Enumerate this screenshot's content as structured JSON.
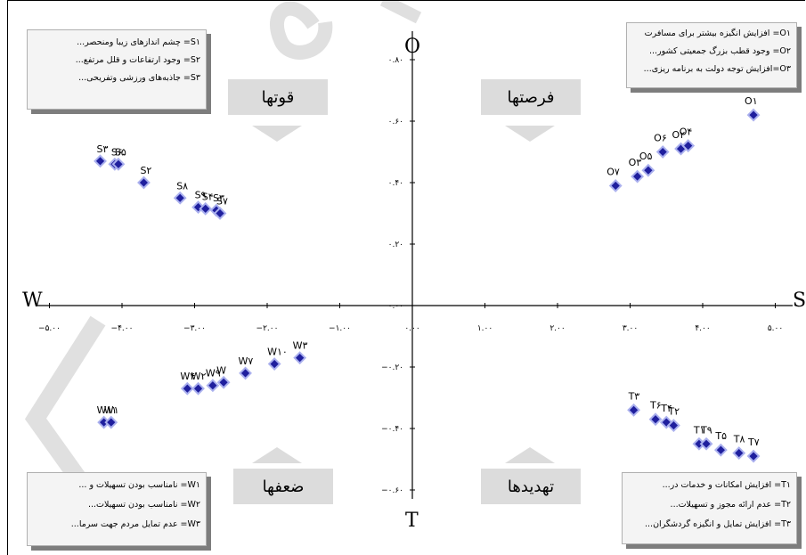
{
  "chart_data": {
    "type": "scatter",
    "title": "",
    "xlabel": "",
    "ylabel": "",
    "xlim": [
      -5.0,
      5.0
    ],
    "ylim": [
      -0.6,
      0.8
    ],
    "x_ticks": [
      -5,
      -4,
      -3,
      -2,
      -1,
      0,
      1,
      2,
      3,
      4,
      5
    ],
    "y_ticks": [
      0.8,
      0.6,
      0.4,
      0.2,
      0.0,
      -0.2,
      -0.4,
      -0.6
    ],
    "x_tick_labels": [
      "−۵.۰۰",
      "−۴.۰۰",
      "−۳.۰۰",
      "−۲.۰۰",
      "−۱.۰۰",
      "۰.۰۰",
      "۱.۰۰",
      "۲.۰۰",
      "۳.۰۰",
      "۴.۰۰",
      "۵.۰۰"
    ],
    "y_tick_labels": [
      "۰.۸۰",
      "۰.۶۰",
      "۰.۴۰",
      "۰.۲۰",
      "۰.۰۰",
      "−۰.۲۰",
      "−۰.۴۰",
      "−۰.۶۰"
    ],
    "series": [
      {
        "name": "S",
        "points": [
          {
            "label": "S۳",
            "x": -4.3,
            "y": 0.47
          },
          {
            "label": "S۶",
            "x": -4.1,
            "y": 0.46
          },
          {
            "label": "S۵",
            "x": -4.05,
            "y": 0.46
          },
          {
            "label": "S۲",
            "x": -3.7,
            "y": 0.4
          },
          {
            "label": "S۸",
            "x": -3.2,
            "y": 0.35
          },
          {
            "label": "S۹",
            "x": -2.95,
            "y": 0.32
          },
          {
            "label": "S۴",
            "x": -2.85,
            "y": 0.315
          },
          {
            "label": "S۳",
            "x": -2.7,
            "y": 0.31
          },
          {
            "label": "S۷",
            "x": -2.65,
            "y": 0.3
          }
        ]
      },
      {
        "name": "O",
        "points": [
          {
            "label": "O۷",
            "x": 2.8,
            "y": 0.39
          },
          {
            "label": "O۳",
            "x": 3.1,
            "y": 0.42
          },
          {
            "label": "O۵",
            "x": 3.25,
            "y": 0.44
          },
          {
            "label": "O۶",
            "x": 3.45,
            "y": 0.5
          },
          {
            "label": "O۲",
            "x": 3.7,
            "y": 0.51
          },
          {
            "label": "O۴",
            "x": 3.8,
            "y": 0.52
          },
          {
            "label": "O۱",
            "x": 4.7,
            "y": 0.62
          }
        ]
      },
      {
        "name": "W",
        "points": [
          {
            "label": "W۱۱",
            "x": -4.25,
            "y": -0.38
          },
          {
            "label": "W۱",
            "x": -4.15,
            "y": -0.38
          },
          {
            "label": "W۴",
            "x": -3.1,
            "y": -0.27
          },
          {
            "label": "W۲",
            "x": -2.95,
            "y": -0.27
          },
          {
            "label": "W۹",
            "x": -2.75,
            "y": -0.26
          },
          {
            "label": "W",
            "x": -2.6,
            "y": -0.25
          },
          {
            "label": "W۷",
            "x": -2.3,
            "y": -0.22
          },
          {
            "label": "W۱۰",
            "x": -1.9,
            "y": -0.19
          },
          {
            "label": "W۳",
            "x": -1.55,
            "y": -0.17
          }
        ]
      },
      {
        "name": "T",
        "points": [
          {
            "label": "T۳",
            "x": 3.05,
            "y": -0.34
          },
          {
            "label": "T۶",
            "x": 3.35,
            "y": -0.37
          },
          {
            "label": "T۴",
            "x": 3.5,
            "y": -0.38
          },
          {
            "label": "T۲",
            "x": 3.6,
            "y": -0.39
          },
          {
            "label": "T۱",
            "x": 3.95,
            "y": -0.45
          },
          {
            "label": "T۹",
            "x": 4.05,
            "y": -0.45
          },
          {
            "label": "T۵",
            "x": 4.25,
            "y": -0.47
          },
          {
            "label": "T۸",
            "x": 4.5,
            "y": -0.48
          },
          {
            "label": "T۷",
            "x": 4.7,
            "y": -0.49
          }
        ]
      }
    ],
    "axis_letters": {
      "top": "O",
      "bottom": "T",
      "left": "W",
      "right": "S"
    },
    "marker_color": "#1f1f9e",
    "marker_edge_color": "#aab0ee"
  },
  "quadrants": {
    "strengths": "قوتها",
    "opportunities": "فرصتها",
    "weaknesses": "ضعفها",
    "threats": "تهدیدها"
  },
  "legend_boxes": {
    "strengths": [
      "S۱= چشم اندازهای زیبا ومنحصر...",
      "S۲= وجود ارتفاعات و قلل مرتفع...",
      "S۳= جاذبه‌های ورزشی وتفریحی..."
    ],
    "opportunities": [
      "O۱= افزایش انگیزه بیشتر برای مسافرت",
      "O۲= وجود قطب بزرگ جمعیتی کشور...",
      "O۳=افزایش توجه دولت به برنامه ریزی..."
    ],
    "weaknesses": [
      "W۱= نامناسب بودن تسهیلات و ...",
      "W۲= نامناسب بودن  تسهیلات...",
      "W۳= عدم تمایل مردم جهت سرما..."
    ],
    "threats": [
      "T۱= افزایش امکانات و خدمات  در...",
      "T۲= عدم ارائه مجوز و تسهیلات...",
      "T۳= افزایش تمایل و انگیزه گردشگران..."
    ]
  }
}
